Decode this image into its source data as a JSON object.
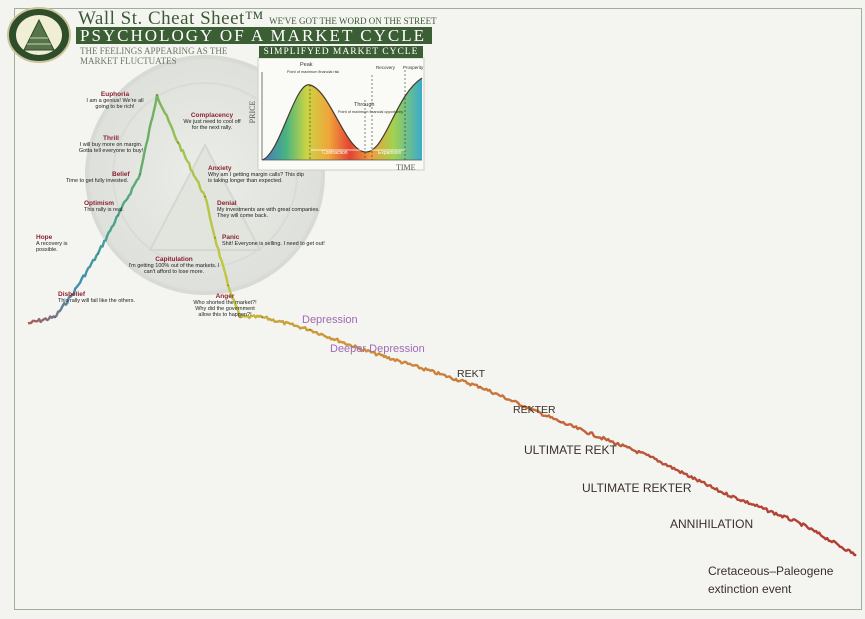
{
  "header": {
    "brand": "Wall St. Cheat Sheet",
    "brand_tagline": "WE'VE GOT THE WORD ON THE STREET",
    "title": "PSYCHOLOGY OF A MARKET CYCLE",
    "subtitle": "THE FEELINGS APPEARING AS THE MARKET FLUCTUATES"
  },
  "inset": {
    "title": "SIMPLIFYED MARKET CYCLE",
    "y_label": "PRICE",
    "x_label": "TIME",
    "labels": {
      "peak": "Peak",
      "peak_note": "Point of maximum financial risk",
      "through": "Through",
      "through_note": "Point of maximum financial opportunity",
      "recovery": "Recovery",
      "prosperity": "Prosperity",
      "contraction": "Contraction",
      "expansion": "Expansion"
    }
  },
  "phases": [
    {
      "name": "Hope",
      "note": "A recovery is possible."
    },
    {
      "name": "Disbelief",
      "note": "This rally will fail like the others."
    },
    {
      "name": "Optimism",
      "note": "This rally is real."
    },
    {
      "name": "Belief",
      "note": "Time to get fully invested."
    },
    {
      "name": "Thrill",
      "note": "I will buy more on margin. Gotta tell everyone to buy!"
    },
    {
      "name": "Euphoria",
      "note": "I am a genius! We're all going to be rich!"
    },
    {
      "name": "Complacency",
      "note": "We just need to cool off for the next rally."
    },
    {
      "name": "Anxiety",
      "note": "Why am I getting margin calls? This dip is taking longer than expected."
    },
    {
      "name": "Denial",
      "note": "My investments are with great companies. They will come back."
    },
    {
      "name": "Panic",
      "note": "Shit! Everyone is selling. I need to get out!"
    },
    {
      "name": "Capitulation",
      "note": "I'm getting 100% out of the markets. I can't afford to lose more."
    },
    {
      "name": "Anger",
      "note": "Who shorted the market?! Why did the government allow this to happen?!"
    }
  ],
  "extended_phases": [
    {
      "name": "Depression",
      "color": "#a06ab5"
    },
    {
      "name": "Deeper Depression",
      "color": "#a06ab5"
    },
    {
      "name": "REKT",
      "color": "#3a2f2a"
    },
    {
      "name": "REKTER",
      "color": "#3a2f2a"
    },
    {
      "name": "ULTIMATE REKT",
      "color": "#3a2f2a"
    },
    {
      "name": "ULTIMATE REKTER",
      "color": "#3a2f2a"
    },
    {
      "name": "ANNIHILATION",
      "color": "#3a2f2a"
    },
    {
      "name": "Cretaceous–Paleogene extinction event",
      "color": "#3a2f2a"
    }
  ],
  "chart_data": {
    "type": "line",
    "title": "PSYCHOLOGY OF A MARKET CYCLE",
    "xlabel": "",
    "ylabel": "",
    "grid": false,
    "series": [
      {
        "points": [
          [
            "Disbelief",
            30
          ],
          [
            "Hope",
            37
          ],
          [
            "Optimism",
            50
          ],
          [
            "Belief",
            62
          ],
          [
            "Thrill",
            75
          ],
          [
            "Euphoria",
            100
          ],
          [
            "Complacency",
            85
          ],
          [
            "Anxiety",
            68
          ],
          [
            "Denial",
            55
          ],
          [
            "Panic",
            40
          ],
          [
            "Capitulation",
            30
          ],
          [
            "Anger",
            30
          ],
          [
            "Depression",
            26
          ],
          [
            "Deeper Depression",
            20
          ],
          [
            "REKT",
            8
          ],
          [
            "REKTER",
            -3
          ],
          [
            "ULTIMATE REKT",
            -14
          ],
          [
            "ULTIMATE REKTER",
            -25
          ],
          [
            "ANNIHILATION",
            -35
          ],
          [
            "Cretaceous–Paleogene extinction event",
            -45
          ]
        ]
      }
    ]
  },
  "colors": {
    "frame": "#9fb09a",
    "brand_green": "#3b5e34",
    "phase_red": "#8b2230",
    "depression_purple": "#a06ab5"
  }
}
